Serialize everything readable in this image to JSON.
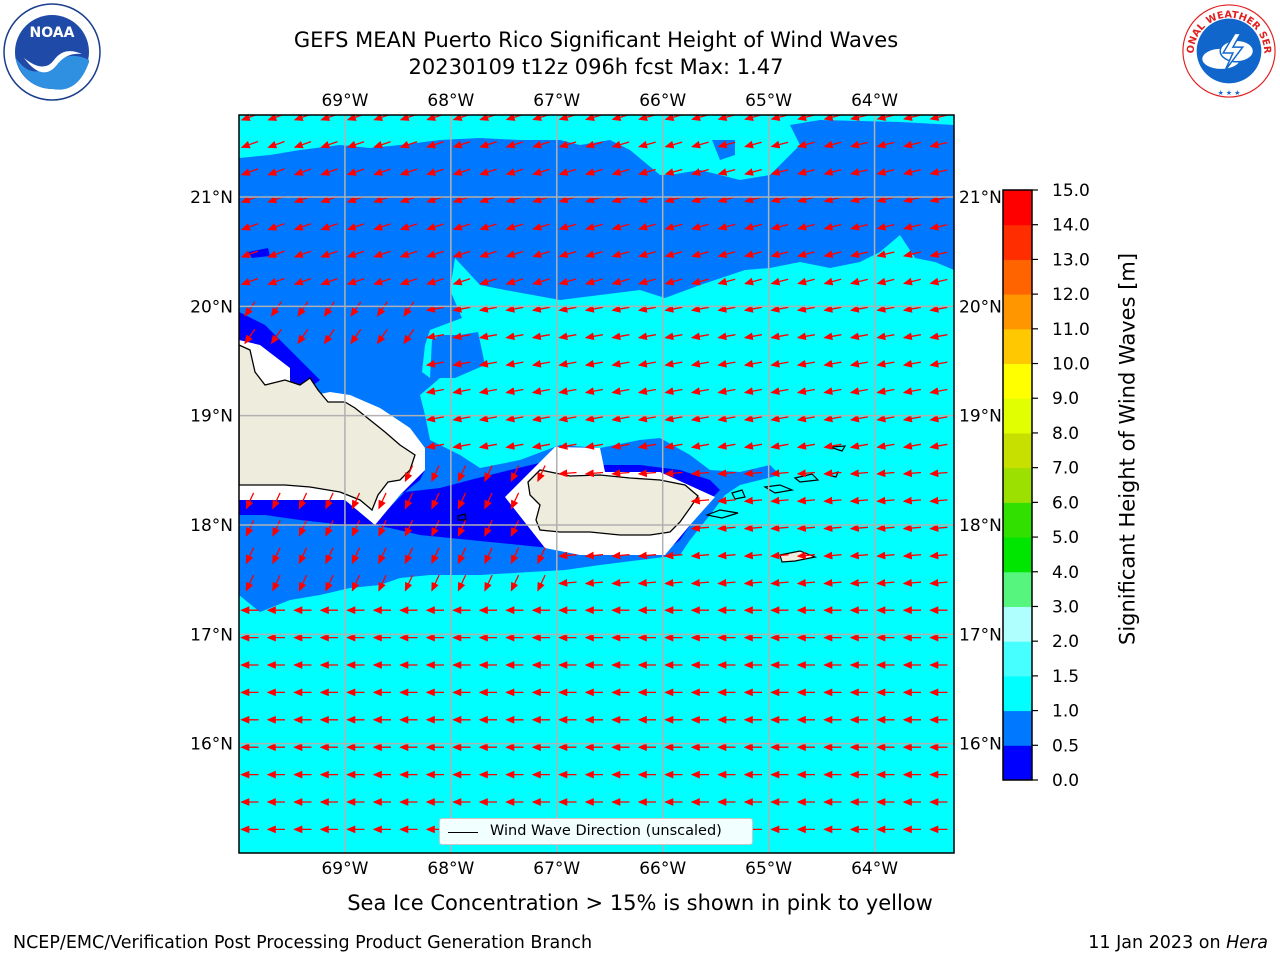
{
  "title": {
    "line1": "GEFS MEAN Puerto Rico Significant Height of Wind Waves",
    "line2": "20230109 t12z 096h fcst   Max: 1.47"
  },
  "logos": {
    "left": {
      "text": "NOAA",
      "ring_text": "NATIONAL OCEANIC AND ATMOSPHERIC ADMINISTRATION · U.S. DEPARTMENT OF COMMERCE"
    },
    "right": {
      "ring_text": "NATIONAL WEATHER SERVICE"
    }
  },
  "map": {
    "lon_labels": [
      "69°W",
      "68°W",
      "67°W",
      "66°W",
      "65°W",
      "64°W"
    ],
    "lat_labels": [
      "21°N",
      "20°N",
      "19°N",
      "18°N",
      "17°N",
      "16°N"
    ],
    "extent": {
      "lon": [
        -70.0,
        -63.25
      ],
      "lat": [
        15.0,
        21.75
      ]
    },
    "land_color": "#eeecdc",
    "vector_color": "#ff0000",
    "gridline_color": "#b0b0b0",
    "legend": {
      "label": "Wind Wave Direction (unscaled)"
    }
  },
  "colorbar": {
    "title": "Significant Height of Wind Waves [m]",
    "tick_labels": [
      "0.0",
      "0.5",
      "1.0",
      "1.5",
      "2.0",
      "3.0",
      "4.0",
      "5.0",
      "6.0",
      "7.0",
      "8.0",
      "9.0",
      "10.0",
      "11.0",
      "12.0",
      "13.0",
      "14.0",
      "15.0"
    ],
    "colors": [
      "#0000ff",
      "#0078ff",
      "#00ffff",
      "#46ffff",
      "#afffff",
      "#55f57e",
      "#00e600",
      "#32e000",
      "#9be000",
      "#c8e000",
      "#e1ff00",
      "#ffff00",
      "#ffc800",
      "#ff9600",
      "#ff6400",
      "#ff2d00",
      "#ff0000"
    ]
  },
  "sea_ice_note": "Sea Ice Concentration > 15% is shown in pink to yellow",
  "footer": {
    "left": "NCEP/EMC/Verification Post Processing Product Generation Branch",
    "right_prefix": "11 Jan 2023 on ",
    "right_machine": "Hera"
  }
}
